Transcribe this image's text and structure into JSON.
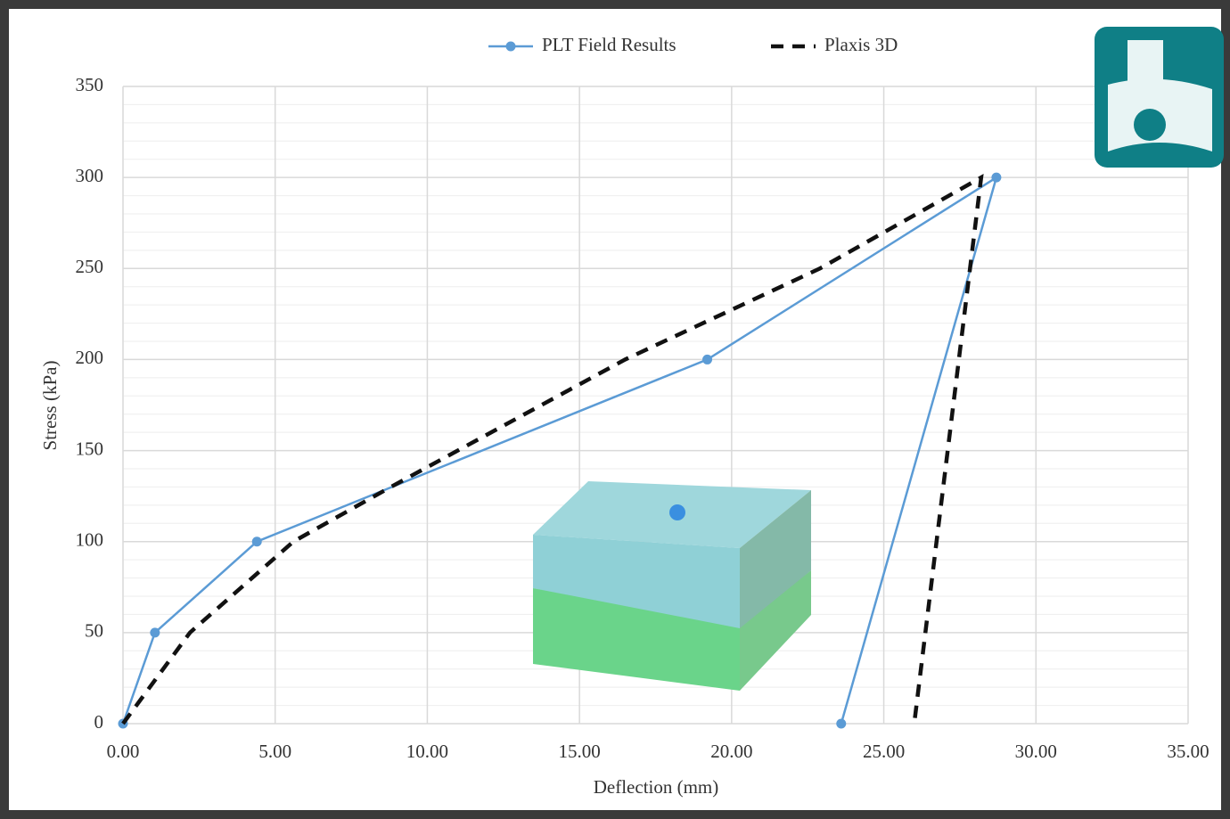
{
  "chart_data": {
    "type": "line",
    "x_label": "Deflection (mm)",
    "y_label": "Stress (kPa)",
    "series": [
      {
        "name": "PLT Field Results",
        "color": "#5b9bd5",
        "line_style": "solid",
        "marker": "circle",
        "x": [
          0,
          1.05,
          4.4,
          19.2,
          28.7,
          23.6
        ],
        "values": [
          0,
          50,
          100,
          200,
          300,
          0
        ]
      },
      {
        "name": "Plaxis 3D",
        "color": "#111111",
        "line_style": "dashed",
        "marker": "none",
        "x": [
          0,
          2.2,
          5.6,
          8.8,
          16.5,
          22.9,
          28.2,
          26.0
        ],
        "values": [
          0,
          50,
          100,
          130,
          200,
          250,
          300,
          0
        ]
      }
    ],
    "xlim": [
      0,
      35
    ],
    "ylim": [
      0,
      350
    ],
    "xticks": [
      {
        "value": 0,
        "label": "0.00"
      },
      {
        "value": 5,
        "label": "5.00"
      },
      {
        "value": 10,
        "label": "10.00"
      },
      {
        "value": 15,
        "label": "15.00"
      },
      {
        "value": 20,
        "label": "20.00"
      },
      {
        "value": 25,
        "label": "25.00"
      },
      {
        "value": 30,
        "label": "30.00"
      },
      {
        "value": 35,
        "label": "35.00"
      }
    ],
    "yticks": [
      0,
      50,
      100,
      150,
      200,
      250,
      300,
      350
    ],
    "grid": true,
    "legend": "top"
  }
}
